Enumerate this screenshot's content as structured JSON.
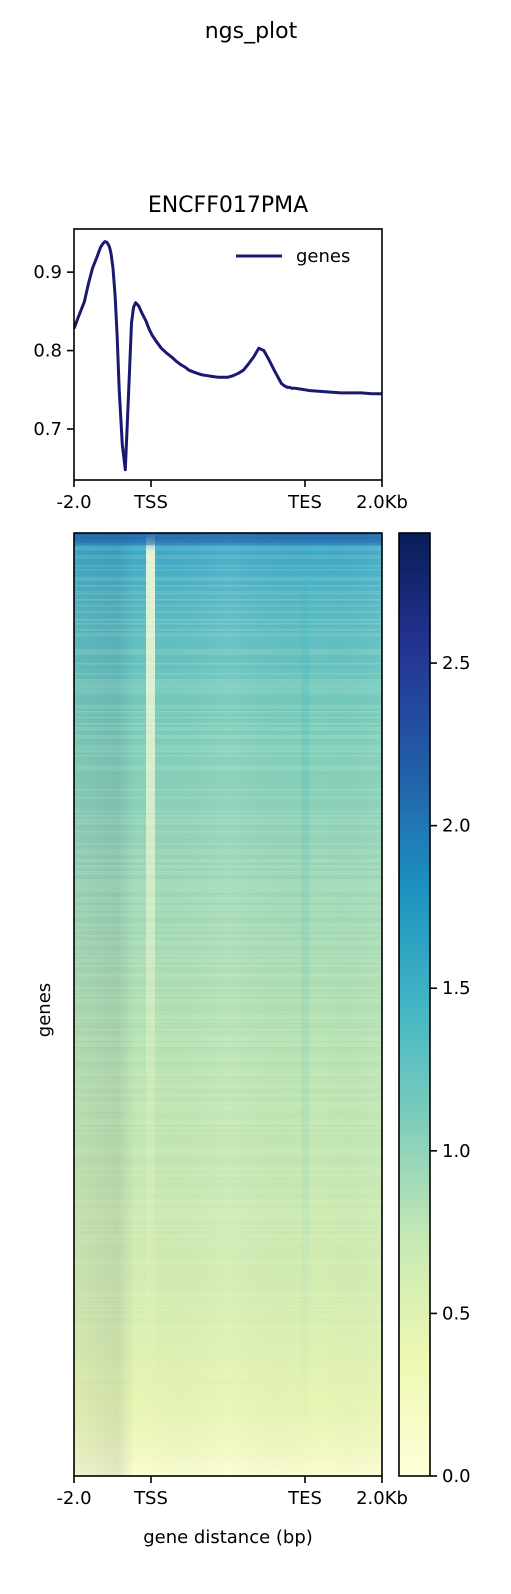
{
  "figure": {
    "suptitle": "ngs_plot"
  },
  "chart_data": [
    {
      "type": "line",
      "title": "ENCFF017PMA",
      "xlabel": "",
      "ylabel": "",
      "x_ticks": [
        "-2.0",
        "TSS",
        "TES",
        "2.0Kb"
      ],
      "y_ticks": [
        "0.7",
        "0.8",
        "0.9"
      ],
      "ylim": [
        0.635,
        0.955
      ],
      "legend": {
        "placement": "top-right"
      },
      "series": [
        {
          "name": "genes",
          "color": "#191970",
          "x": [
            0,
            0.04,
            0.1,
            0.14,
            0.18,
            0.22,
            0.24,
            0.26,
            0.28,
            0.3,
            0.32,
            0.34,
            0.35,
            0.36,
            0.38,
            0.4,
            0.42,
            0.44,
            0.47,
            0.5,
            0.53,
            0.56,
            0.58,
            0.6,
            0.63,
            0.66,
            0.7,
            0.73,
            0.76,
            0.8,
            0.85,
            0.9,
            0.95,
            1.0,
            1.04,
            1.08,
            1.12,
            1.16,
            1.2,
            1.25,
            1.3,
            1.35,
            1.4,
            1.45,
            1.5,
            1.55,
            1.6,
            1.65,
            1.7,
            1.75,
            1.8,
            1.85,
            1.9,
            1.95,
            2.0,
            2.02,
            2.05,
            2.08,
            2.1,
            2.12,
            2.15,
            2.2,
            2.25,
            2.3,
            2.4,
            2.5,
            2.6,
            2.7,
            2.8,
            2.9,
            3.0
          ],
          "values": [
            0.828,
            0.842,
            0.862,
            0.885,
            0.905,
            0.918,
            0.925,
            0.932,
            0.936,
            0.939,
            0.938,
            0.934,
            0.93,
            0.924,
            0.905,
            0.87,
            0.82,
            0.75,
            0.68,
            0.648,
            0.74,
            0.835,
            0.855,
            0.861,
            0.857,
            0.848,
            0.838,
            0.828,
            0.82,
            0.812,
            0.803,
            0.797,
            0.792,
            0.786,
            0.782,
            0.779,
            0.775,
            0.773,
            0.771,
            0.769,
            0.768,
            0.767,
            0.766,
            0.766,
            0.766,
            0.768,
            0.771,
            0.775,
            0.783,
            0.792,
            0.803,
            0.8,
            0.788,
            0.775,
            0.763,
            0.758,
            0.755,
            0.753,
            0.753,
            0.752,
            0.752,
            0.751,
            0.75,
            0.749,
            0.748,
            0.747,
            0.746,
            0.746,
            0.746,
            0.745,
            0.745
          ]
        }
      ]
    },
    {
      "type": "heatmap",
      "title": "",
      "xlabel": "gene distance (bp)",
      "ylabel": "genes",
      "x_ticks": [
        "-2.0",
        "TSS",
        "TES",
        "2.0Kb"
      ],
      "colormap": "YlGnBu",
      "colorbar": {
        "range": [
          0,
          2.9
        ],
        "ticks": [
          "0.0",
          "0.5",
          "1.0",
          "1.5",
          "2.0",
          "2.5"
        ]
      }
    }
  ]
}
